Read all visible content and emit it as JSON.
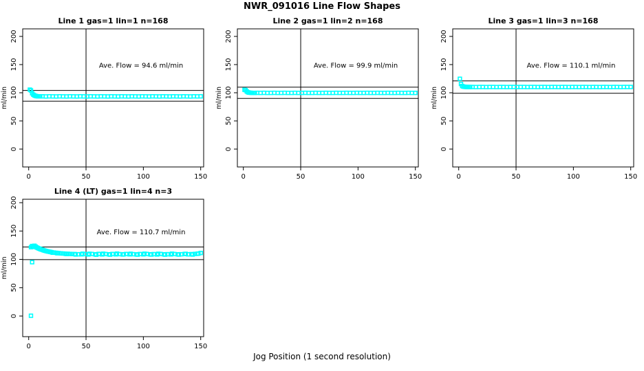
{
  "page": {
    "main_title": "NWR_091016  Line Flow Shapes",
    "x_axis_label": "Jog Position (1 second resolution)"
  },
  "colors": {
    "points": "#00FFFF",
    "axis": "#000000",
    "background": "#FFFFFF"
  },
  "chart_data": {
    "type": "scatter",
    "title": "NWR_091016  Line Flow Shapes",
    "xlabel": "Jog Position (1 second resolution)",
    "ylabel": "ml/min",
    "x_ticks": [
      0,
      50,
      100,
      150
    ],
    "y_ticks": [
      0,
      50,
      100,
      150,
      200
    ],
    "xlim": [
      -5.2,
      152.6
    ],
    "ylim": [
      -31.7,
      213.4
    ],
    "grid": false,
    "marker": "open-square",
    "panels": [
      {
        "title": "Line 1 gas=1 lin=1 n=168",
        "annotation": "Ave. Flow =  94.6  ml/min",
        "ave_flow": 94.6,
        "n": 168,
        "ylabel": "ml/min",
        "hlines": [
          104.1,
          85.1
        ],
        "vline": 50,
        "points": [
          [
            1,
            105.5
          ],
          [
            2,
            104.2
          ],
          [
            3,
            99.0
          ],
          [
            4,
            96.6
          ],
          [
            5,
            95.2
          ],
          [
            6,
            94.4
          ],
          [
            7,
            93.9
          ],
          [
            8,
            93.7
          ],
          [
            9,
            93.6
          ],
          [
            10,
            93.5
          ],
          [
            12,
            93.6
          ],
          [
            15,
            93.4
          ],
          [
            18,
            93.6
          ],
          [
            21,
            93.5
          ],
          [
            24,
            93.4
          ],
          [
            27,
            93.6
          ],
          [
            30,
            93.5
          ],
          [
            33,
            93.4
          ],
          [
            36,
            93.6
          ],
          [
            39,
            93.5
          ],
          [
            42,
            93.4
          ],
          [
            45,
            93.6
          ],
          [
            48,
            93.5
          ],
          [
            51,
            93.4
          ],
          [
            54,
            93.6
          ],
          [
            57,
            93.5
          ],
          [
            60,
            93.4
          ],
          [
            63,
            93.6
          ],
          [
            66,
            93.5
          ],
          [
            69,
            93.4
          ],
          [
            72,
            93.6
          ],
          [
            75,
            93.5
          ],
          [
            78,
            93.4
          ],
          [
            81,
            93.6
          ],
          [
            84,
            93.5
          ],
          [
            87,
            93.4
          ],
          [
            90,
            93.6
          ],
          [
            93,
            93.5
          ],
          [
            96,
            93.4
          ],
          [
            99,
            93.6
          ],
          [
            102,
            93.5
          ],
          [
            105,
            93.4
          ],
          [
            108,
            93.6
          ],
          [
            111,
            93.5
          ],
          [
            114,
            93.4
          ],
          [
            117,
            93.6
          ],
          [
            120,
            93.5
          ],
          [
            123,
            93.4
          ],
          [
            126,
            93.6
          ],
          [
            129,
            93.5
          ],
          [
            132,
            93.4
          ],
          [
            135,
            93.6
          ],
          [
            138,
            93.5
          ],
          [
            141,
            93.4
          ],
          [
            144,
            93.6
          ],
          [
            147,
            93.5
          ],
          [
            150,
            93.6
          ]
        ]
      },
      {
        "title": "Line 2 gas=1 lin=2 n=168",
        "annotation": "Ave. Flow =  99.9  ml/min",
        "ave_flow": 99.9,
        "n": 168,
        "ylabel": "ml/min",
        "hlines": [
          109.9,
          89.9
        ],
        "vline": 50,
        "points": [
          [
            1,
            105.3
          ],
          [
            2,
            104.6
          ],
          [
            3,
            102.2
          ],
          [
            4,
            100.9
          ],
          [
            5,
            100.3
          ],
          [
            6,
            100.0
          ],
          [
            7,
            99.9
          ],
          [
            8,
            99.8
          ],
          [
            9,
            99.8
          ],
          [
            10,
            99.8
          ],
          [
            12,
            99.9
          ],
          [
            15,
            99.7
          ],
          [
            18,
            99.9
          ],
          [
            21,
            99.8
          ],
          [
            24,
            99.7
          ],
          [
            27,
            99.9
          ],
          [
            30,
            99.8
          ],
          [
            33,
            99.7
          ],
          [
            36,
            99.9
          ],
          [
            39,
            99.8
          ],
          [
            42,
            99.7
          ],
          [
            45,
            99.9
          ],
          [
            48,
            99.8
          ],
          [
            51,
            99.7
          ],
          [
            54,
            99.9
          ],
          [
            57,
            99.8
          ],
          [
            60,
            99.7
          ],
          [
            63,
            99.9
          ],
          [
            66,
            99.8
          ],
          [
            69,
            99.7
          ],
          [
            72,
            99.9
          ],
          [
            75,
            99.8
          ],
          [
            78,
            99.7
          ],
          [
            81,
            99.9
          ],
          [
            84,
            99.8
          ],
          [
            87,
            99.7
          ],
          [
            90,
            99.9
          ],
          [
            93,
            99.8
          ],
          [
            96,
            99.7
          ],
          [
            99,
            99.9
          ],
          [
            102,
            99.8
          ],
          [
            105,
            99.7
          ],
          [
            108,
            99.9
          ],
          [
            111,
            99.8
          ],
          [
            114,
            99.7
          ],
          [
            117,
            99.9
          ],
          [
            120,
            99.8
          ],
          [
            123,
            99.7
          ],
          [
            126,
            99.9
          ],
          [
            129,
            99.8
          ],
          [
            132,
            99.7
          ],
          [
            135,
            99.9
          ],
          [
            138,
            99.8
          ],
          [
            141,
            99.7
          ],
          [
            144,
            99.9
          ],
          [
            147,
            99.8
          ],
          [
            150,
            99.8
          ]
        ]
      },
      {
        "title": "Line 3 gas=1 lin=3 n=168",
        "annotation": "Ave. Flow =  110.1  ml/min",
        "ave_flow": 110.1,
        "n": 168,
        "ylabel": "ml/min",
        "hlines": [
          121.1,
          99.1
        ],
        "vline": 50,
        "points": [
          [
            1,
            124.8
          ],
          [
            2,
            115.6
          ],
          [
            3,
            112.0
          ],
          [
            4,
            111.0
          ],
          [
            5,
            110.6
          ],
          [
            6,
            110.4
          ],
          [
            7,
            110.3
          ],
          [
            8,
            110.2
          ],
          [
            9,
            110.2
          ],
          [
            10,
            110.2
          ],
          [
            12,
            110.3
          ],
          [
            15,
            110.1
          ],
          [
            18,
            110.3
          ],
          [
            21,
            110.2
          ],
          [
            24,
            110.1
          ],
          [
            27,
            110.3
          ],
          [
            30,
            110.2
          ],
          [
            33,
            110.1
          ],
          [
            36,
            110.3
          ],
          [
            39,
            110.2
          ],
          [
            42,
            110.1
          ],
          [
            45,
            110.3
          ],
          [
            48,
            110.2
          ],
          [
            51,
            110.1
          ],
          [
            54,
            110.3
          ],
          [
            57,
            110.2
          ],
          [
            60,
            110.1
          ],
          [
            63,
            110.3
          ],
          [
            66,
            110.2
          ],
          [
            69,
            110.1
          ],
          [
            72,
            110.3
          ],
          [
            75,
            110.2
          ],
          [
            78,
            110.1
          ],
          [
            81,
            110.3
          ],
          [
            84,
            110.2
          ],
          [
            87,
            110.1
          ],
          [
            90,
            110.3
          ],
          [
            93,
            110.2
          ],
          [
            96,
            110.1
          ],
          [
            99,
            110.3
          ],
          [
            102,
            110.2
          ],
          [
            105,
            110.1
          ],
          [
            108,
            110.3
          ],
          [
            111,
            110.2
          ],
          [
            114,
            110.1
          ],
          [
            117,
            110.3
          ],
          [
            120,
            110.2
          ],
          [
            123,
            110.1
          ],
          [
            126,
            110.3
          ],
          [
            129,
            110.2
          ],
          [
            132,
            110.1
          ],
          [
            135,
            110.3
          ],
          [
            138,
            110.2
          ],
          [
            141,
            110.1
          ],
          [
            144,
            110.3
          ],
          [
            147,
            110.2
          ],
          [
            150,
            110.2
          ]
        ]
      },
      {
        "title": "Line 4 (LT) gas=1 lin=4 n=3",
        "annotation": "Ave. Flow =  110.7  ml/min",
        "ave_flow": 110.7,
        "n": 3,
        "ylabel": "ml/min",
        "hlines": [
          121.8,
          99.6
        ],
        "vline": 50,
        "points": [
          [
            2,
            0.5
          ],
          [
            3,
            95.0
          ],
          [
            2,
            121.5
          ],
          [
            3,
            123.5
          ],
          [
            4,
            122.0
          ],
          [
            5,
            124.0
          ],
          [
            6,
            122.5
          ],
          [
            7,
            121.0
          ],
          [
            8,
            120.0
          ],
          [
            9,
            119.0
          ],
          [
            10,
            118.2
          ],
          [
            11,
            117.4
          ],
          [
            12,
            116.8
          ],
          [
            13,
            116.0
          ],
          [
            14,
            115.4
          ],
          [
            15,
            114.8
          ],
          [
            16,
            114.3
          ],
          [
            17,
            113.8
          ],
          [
            18,
            113.4
          ],
          [
            19,
            113.0
          ],
          [
            20,
            112.6
          ],
          [
            22,
            112.0
          ],
          [
            24,
            111.5
          ],
          [
            26,
            111.0
          ],
          [
            28,
            110.6
          ],
          [
            30,
            110.3
          ],
          [
            32,
            110.0
          ],
          [
            34,
            109.8
          ],
          [
            36,
            109.6
          ],
          [
            38,
            109.4
          ],
          [
            40,
            109.3
          ],
          [
            43,
            109.0
          ],
          [
            46,
            108.8
          ],
          [
            49,
            109.2
          ],
          [
            52,
            108.6
          ],
          [
            55,
            109.4
          ],
          [
            58,
            108.9
          ],
          [
            61,
            109.6
          ],
          [
            64,
            108.7
          ],
          [
            67,
            109.3
          ],
          [
            70,
            108.8
          ],
          [
            73,
            109.5
          ],
          [
            76,
            108.9
          ],
          [
            79,
            109.2
          ],
          [
            82,
            108.6
          ],
          [
            85,
            109.4
          ],
          [
            88,
            108.8
          ],
          [
            91,
            109.1
          ],
          [
            94,
            108.7
          ],
          [
            97,
            109.3
          ],
          [
            100,
            108.9
          ],
          [
            103,
            109.5
          ],
          [
            106,
            108.8
          ],
          [
            109,
            109.2
          ],
          [
            112,
            108.6
          ],
          [
            115,
            109.4
          ],
          [
            118,
            108.9
          ],
          [
            121,
            109.1
          ],
          [
            124,
            108.7
          ],
          [
            127,
            109.3
          ],
          [
            130,
            108.8
          ],
          [
            133,
            109.0
          ],
          [
            136,
            109.4
          ],
          [
            139,
            108.9
          ],
          [
            142,
            109.2
          ],
          [
            145,
            109.6
          ],
          [
            148,
            110.2
          ],
          [
            150,
            111.3
          ],
          [
            21,
            111.8
          ],
          [
            25,
            110.8
          ],
          [
            33,
            109.4
          ],
          [
            41,
            108.6
          ],
          [
            47,
            110.0
          ],
          [
            53,
            109.8
          ],
          [
            59,
            108.3
          ],
          [
            65,
            109.9
          ],
          [
            71,
            108.4
          ],
          [
            77,
            110.1
          ],
          [
            83,
            109.0
          ],
          [
            89,
            109.8
          ],
          [
            95,
            108.4
          ],
          [
            101,
            109.9
          ],
          [
            107,
            108.5
          ],
          [
            113,
            109.8
          ],
          [
            119,
            108.4
          ],
          [
            125,
            109.9
          ],
          [
            131,
            108.5
          ],
          [
            137,
            109.7
          ],
          [
            143,
            108.5
          ],
          [
            147,
            109.8
          ]
        ]
      }
    ]
  }
}
